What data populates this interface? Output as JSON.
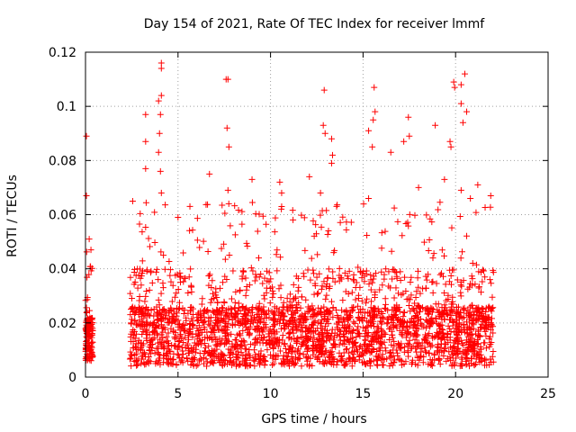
{
  "chart_data": {
    "type": "scatter",
    "title": "Day 154 of 2021, Rate Of TEC Index for receiver lmmf",
    "xlabel": "GPS time / hours",
    "ylabel": "ROTI / TECUs",
    "xlim": [
      0,
      25
    ],
    "ylim": [
      0,
      0.12
    ],
    "x_ticks": [
      "0",
      "5",
      "10",
      "15",
      "20",
      "25"
    ],
    "y_ticks": [
      "0",
      "0.02",
      "0.04",
      "0.06",
      "0.08",
      "0.1",
      "0.12"
    ],
    "grid": true,
    "marker": "plus",
    "color": "#ff0000",
    "data_extent_hours": [
      [
        0,
        0.4
      ],
      [
        2.4,
        22.1
      ]
    ],
    "highlighted_points": [
      {
        "x": 0.05,
        "y": 0.089
      },
      {
        "x": 0.05,
        "y": 0.067
      },
      {
        "x": 0.2,
        "y": 0.051
      },
      {
        "x": 2.55,
        "y": 0.065
      },
      {
        "x": 3.25,
        "y": 0.097
      },
      {
        "x": 3.25,
        "y": 0.087
      },
      {
        "x": 3.25,
        "y": 0.077
      },
      {
        "x": 3.95,
        "y": 0.102
      },
      {
        "x": 4.1,
        "y": 0.116
      },
      {
        "x": 4.1,
        "y": 0.114
      },
      {
        "x": 4.1,
        "y": 0.104
      },
      {
        "x": 4.05,
        "y": 0.097
      },
      {
        "x": 4.0,
        "y": 0.09
      },
      {
        "x": 3.95,
        "y": 0.083
      },
      {
        "x": 4.05,
        "y": 0.076
      },
      {
        "x": 4.1,
        "y": 0.068
      },
      {
        "x": 5.0,
        "y": 0.059
      },
      {
        "x": 6.7,
        "y": 0.075
      },
      {
        "x": 7.6,
        "y": 0.11
      },
      {
        "x": 7.7,
        "y": 0.11
      },
      {
        "x": 7.65,
        "y": 0.092
      },
      {
        "x": 7.75,
        "y": 0.085
      },
      {
        "x": 7.7,
        "y": 0.069
      },
      {
        "x": 9.0,
        "y": 0.073
      },
      {
        "x": 10.5,
        "y": 0.072
      },
      {
        "x": 10.6,
        "y": 0.068
      },
      {
        "x": 10.6,
        "y": 0.063
      },
      {
        "x": 12.1,
        "y": 0.074
      },
      {
        "x": 12.9,
        "y": 0.106
      },
      {
        "x": 12.85,
        "y": 0.093
      },
      {
        "x": 12.95,
        "y": 0.09
      },
      {
        "x": 12.7,
        "y": 0.068
      },
      {
        "x": 13.3,
        "y": 0.088
      },
      {
        "x": 13.35,
        "y": 0.082
      },
      {
        "x": 13.3,
        "y": 0.079
      },
      {
        "x": 15.3,
        "y": 0.091
      },
      {
        "x": 15.6,
        "y": 0.107
      },
      {
        "x": 15.65,
        "y": 0.098
      },
      {
        "x": 15.55,
        "y": 0.095
      },
      {
        "x": 15.5,
        "y": 0.085
      },
      {
        "x": 15.3,
        "y": 0.066
      },
      {
        "x": 16.5,
        "y": 0.083
      },
      {
        "x": 17.2,
        "y": 0.087
      },
      {
        "x": 17.45,
        "y": 0.096
      },
      {
        "x": 17.5,
        "y": 0.089
      },
      {
        "x": 18.0,
        "y": 0.07
      },
      {
        "x": 18.9,
        "y": 0.093
      },
      {
        "x": 19.4,
        "y": 0.073
      },
      {
        "x": 19.7,
        "y": 0.087
      },
      {
        "x": 19.75,
        "y": 0.085
      },
      {
        "x": 19.9,
        "y": 0.109
      },
      {
        "x": 19.95,
        "y": 0.107
      },
      {
        "x": 20.3,
        "y": 0.108
      },
      {
        "x": 20.5,
        "y": 0.112
      },
      {
        "x": 20.3,
        "y": 0.101
      },
      {
        "x": 20.6,
        "y": 0.098
      },
      {
        "x": 20.4,
        "y": 0.094
      },
      {
        "x": 20.3,
        "y": 0.069
      },
      {
        "x": 20.8,
        "y": 0.066
      },
      {
        "x": 21.9,
        "y": 0.067
      },
      {
        "x": 21.2,
        "y": 0.071
      }
    ]
  }
}
